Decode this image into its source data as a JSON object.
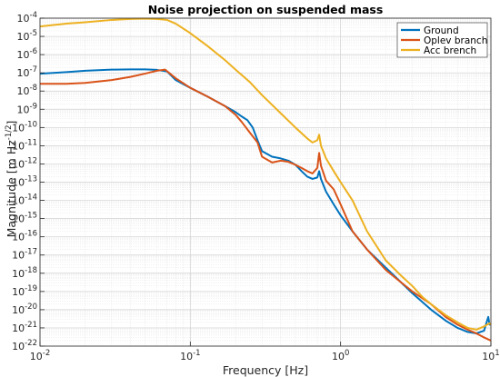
{
  "chart_data": {
    "type": "line",
    "title": "Noise projection on suspended mass",
    "xlabel": "Frequency [Hz]",
    "ylabel_main": "Magnitude [m Hz",
    "ylabel_exp": "-1/2",
    "ylabel_close": "]",
    "xscale": "log",
    "yscale": "log",
    "xlim": [
      0.01,
      10
    ],
    "ylim": [
      1e-22,
      0.0001
    ],
    "grid": true,
    "legend_position": "top-right",
    "x_ticks": [
      {
        "value": 0.01,
        "base": "10",
        "exp": "-2"
      },
      {
        "value": 0.1,
        "base": "10",
        "exp": "-1"
      },
      {
        "value": 1,
        "base": "10",
        "exp": "0"
      },
      {
        "value": 10,
        "base": "10",
        "exp": "1"
      }
    ],
    "y_ticks": [
      {
        "value": 1e-22,
        "base": "10",
        "exp": "-22"
      },
      {
        "value": 1e-21,
        "base": "10",
        "exp": "-21"
      },
      {
        "value": 1e-20,
        "base": "10",
        "exp": "-20"
      },
      {
        "value": 1e-19,
        "base": "10",
        "exp": "-19"
      },
      {
        "value": 1e-18,
        "base": "10",
        "exp": "-18"
      },
      {
        "value": 1e-17,
        "base": "10",
        "exp": "-17"
      },
      {
        "value": 1e-16,
        "base": "10",
        "exp": "-16"
      },
      {
        "value": 1e-15,
        "base": "10",
        "exp": "-15"
      },
      {
        "value": 1e-14,
        "base": "10",
        "exp": "-14"
      },
      {
        "value": 1e-13,
        "base": "10",
        "exp": "-13"
      },
      {
        "value": 1e-12,
        "base": "10",
        "exp": "-12"
      },
      {
        "value": 1e-11,
        "base": "10",
        "exp": "-11"
      },
      {
        "value": 1e-10,
        "base": "10",
        "exp": "-10"
      },
      {
        "value": 1e-09,
        "base": "10",
        "exp": "-9"
      },
      {
        "value": 1e-08,
        "base": "10",
        "exp": "-8"
      },
      {
        "value": 1e-07,
        "base": "10",
        "exp": "-7"
      },
      {
        "value": 1e-06,
        "base": "10",
        "exp": "-6"
      },
      {
        "value": 1e-05,
        "base": "10",
        "exp": "-5"
      },
      {
        "value": 0.0001,
        "base": "10",
        "exp": "-4"
      }
    ],
    "series": [
      {
        "name": "Ground",
        "color": "#0072BD",
        "points": [
          [
            0.01,
            9e-08
          ],
          [
            0.015,
            1.1e-07
          ],
          [
            0.02,
            1.3e-07
          ],
          [
            0.03,
            1.5e-07
          ],
          [
            0.04,
            1.55e-07
          ],
          [
            0.05,
            1.55e-07
          ],
          [
            0.06,
            1.45e-07
          ],
          [
            0.07,
            1.2e-07
          ],
          [
            0.08,
            4e-08
          ],
          [
            0.1,
            1.5e-08
          ],
          [
            0.13,
            5e-09
          ],
          [
            0.17,
            1.5e-09
          ],
          [
            0.2,
            7e-10
          ],
          [
            0.22,
            4e-10
          ],
          [
            0.24,
            2.5e-10
          ],
          [
            0.26,
            1e-10
          ],
          [
            0.28,
            2e-11
          ],
          [
            0.3,
            5e-12
          ],
          [
            0.35,
            2.5e-12
          ],
          [
            0.4,
            2e-12
          ],
          [
            0.45,
            1.5e-12
          ],
          [
            0.5,
            9e-13
          ],
          [
            0.55,
            4e-13
          ],
          [
            0.6,
            2e-13
          ],
          [
            0.65,
            1.5e-13
          ],
          [
            0.7,
            1.8e-13
          ],
          [
            0.72,
            4e-13
          ],
          [
            0.74,
            1.5e-13
          ],
          [
            0.8,
            3e-14
          ],
          [
            0.9,
            6e-15
          ],
          [
            1.0,
            1.5e-15
          ],
          [
            1.2,
            2e-16
          ],
          [
            1.5,
            2e-17
          ],
          [
            2,
            2e-18
          ],
          [
            3,
            8e-20
          ],
          [
            4,
            1e-20
          ],
          [
            5,
            2.5e-21
          ],
          [
            6,
            1e-21
          ],
          [
            7,
            6e-22
          ],
          [
            8,
            5e-22
          ],
          [
            9,
            7e-22
          ],
          [
            9.6,
            4e-21
          ],
          [
            9.8,
            1.5e-21
          ],
          [
            10,
            1.5e-21
          ]
        ]
      },
      {
        "name": "Oplev branch",
        "color": "#D95319",
        "points": [
          [
            0.01,
            2.5e-08
          ],
          [
            0.015,
            2.5e-08
          ],
          [
            0.02,
            2.8e-08
          ],
          [
            0.03,
            4e-08
          ],
          [
            0.04,
            6e-08
          ],
          [
            0.05,
            9e-08
          ],
          [
            0.06,
            1.3e-07
          ],
          [
            0.068,
            1.5e-07
          ],
          [
            0.08,
            5e-08
          ],
          [
            0.1,
            1.5e-08
          ],
          [
            0.13,
            5e-09
          ],
          [
            0.17,
            1.5e-09
          ],
          [
            0.2,
            5e-10
          ],
          [
            0.22,
            2e-10
          ],
          [
            0.25,
            5e-11
          ],
          [
            0.28,
            1.5e-11
          ],
          [
            0.3,
            2.5e-12
          ],
          [
            0.35,
            1.2e-12
          ],
          [
            0.4,
            1.5e-12
          ],
          [
            0.45,
            1.3e-12
          ],
          [
            0.5,
            9e-13
          ],
          [
            0.55,
            6e-13
          ],
          [
            0.6,
            4e-13
          ],
          [
            0.65,
            3e-13
          ],
          [
            0.7,
            6e-13
          ],
          [
            0.72,
            4e-12
          ],
          [
            0.74,
            8e-13
          ],
          [
            0.8,
            1.2e-13
          ],
          [
            0.9,
            4e-14
          ],
          [
            1.0,
            6e-15
          ],
          [
            1.2,
            2e-16
          ],
          [
            1.5,
            2e-17
          ],
          [
            2,
            1.5e-18
          ],
          [
            3,
            1e-19
          ],
          [
            4,
            2e-20
          ],
          [
            5,
            4e-21
          ],
          [
            6,
            1.5e-21
          ],
          [
            7,
            8e-22
          ],
          [
            8,
            5e-22
          ],
          [
            9,
            3e-22
          ],
          [
            10,
            2e-22
          ]
        ]
      },
      {
        "name": "Acc brench",
        "color": "#EDB120",
        "points": [
          [
            0.01,
            3.5e-05
          ],
          [
            0.015,
            5e-05
          ],
          [
            0.02,
            6e-05
          ],
          [
            0.03,
            8e-05
          ],
          [
            0.04,
            9e-05
          ],
          [
            0.05,
            9.5e-05
          ],
          [
            0.06,
            9e-05
          ],
          [
            0.07,
            8e-05
          ],
          [
            0.08,
            5e-05
          ],
          [
            0.1,
            1.5e-05
          ],
          [
            0.13,
            3e-06
          ],
          [
            0.17,
            5e-07
          ],
          [
            0.2,
            1.5e-07
          ],
          [
            0.25,
            3e-08
          ],
          [
            0.3,
            6e-09
          ],
          [
            0.4,
            6e-10
          ],
          [
            0.5,
            1e-10
          ],
          [
            0.6,
            2.5e-11
          ],
          [
            0.65,
            1.5e-11
          ],
          [
            0.7,
            2e-11
          ],
          [
            0.72,
            4e-11
          ],
          [
            0.74,
            1e-11
          ],
          [
            0.8,
            2e-12
          ],
          [
            0.9,
            4e-13
          ],
          [
            1.0,
            1e-13
          ],
          [
            1.2,
            1e-14
          ],
          [
            1.5,
            2e-16
          ],
          [
            2,
            5e-18
          ],
          [
            2.5,
            8e-19
          ],
          [
            3,
            2e-19
          ],
          [
            3.5,
            5e-20
          ],
          [
            4,
            2e-20
          ],
          [
            5,
            5e-21
          ],
          [
            6,
            2e-21
          ],
          [
            7,
            1e-21
          ],
          [
            8,
            8e-22
          ],
          [
            9,
            1.2e-21
          ],
          [
            9.8,
            1.8e-21
          ],
          [
            10,
            1.5e-21
          ]
        ]
      }
    ]
  }
}
